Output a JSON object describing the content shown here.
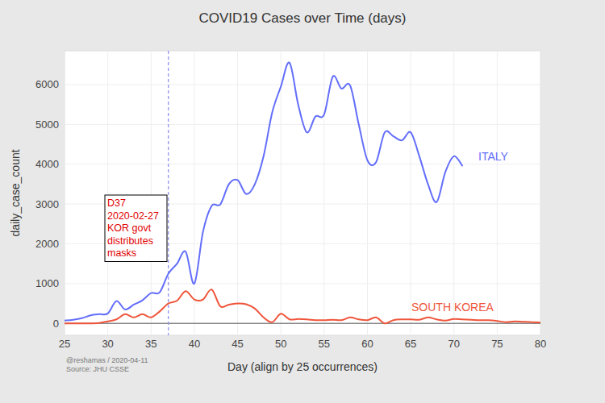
{
  "chart_data": {
    "type": "line",
    "title": "COVID19 Cases over Time (days)",
    "x_label": "Day (align by 25 occurrences)",
    "y_label": "daily_case_count",
    "x": [
      25,
      26,
      27,
      28,
      29,
      30,
      31,
      32,
      33,
      34,
      35,
      36,
      37,
      38,
      39,
      40,
      41,
      42,
      43,
      44,
      45,
      46,
      47,
      48,
      49,
      50,
      51,
      52,
      53,
      54,
      55,
      56,
      57,
      58,
      59,
      60,
      61,
      62,
      63,
      64,
      65,
      66,
      67,
      68,
      69,
      70,
      71,
      72,
      73,
      74,
      75,
      76,
      77,
      78,
      79,
      80
    ],
    "series": [
      {
        "name": "ITALY",
        "color": "#636efa",
        "values": [
          70,
          90,
          130,
          200,
          230,
          250,
          560,
          350,
          470,
          580,
          760,
          780,
          1250,
          1500,
          1800,
          1000,
          2300,
          2950,
          2990,
          3500,
          3600,
          3250,
          3500,
          4200,
          5300,
          5950,
          6550,
          5500,
          4800,
          5200,
          5250,
          6200,
          5900,
          5980,
          5000,
          4100,
          4050,
          4800,
          4700,
          4600,
          4800,
          4200,
          3500,
          3050,
          3800,
          4200,
          3950,
          null,
          null,
          null,
          null,
          null,
          null,
          null,
          null,
          null
        ]
      },
      {
        "name": "SOUTH KOREA",
        "color": "#ef553b",
        "values": [
          0,
          0,
          0,
          0,
          10,
          50,
          100,
          230,
          150,
          230,
          150,
          300,
          500,
          570,
          810,
          600,
          600,
          850,
          430,
          470,
          500,
          480,
          370,
          150,
          30,
          240,
          100,
          110,
          100,
          80,
          80,
          90,
          80,
          150,
          100,
          80,
          150,
          0,
          80,
          100,
          100,
          90,
          150,
          100,
          70,
          110,
          100,
          90,
          80,
          80,
          60,
          30,
          50,
          40,
          30,
          25
        ]
      }
    ],
    "xlim": [
      25,
      80
    ],
    "ylim": [
      -300,
      6850
    ],
    "xticks": [
      25,
      30,
      35,
      40,
      45,
      50,
      55,
      60,
      65,
      70,
      75,
      80
    ],
    "yticks": [
      0,
      1000,
      2000,
      3000,
      4000,
      5000,
      6000
    ],
    "grid": true,
    "annotations": [
      {
        "x": 37,
        "lines": [
          "D37",
          "2020-02-27",
          "KOR govt",
          "distributes",
          "masks"
        ]
      }
    ],
    "notes": [
      "@reshamas / 2020-04-11",
      "Source: JHU CSSE"
    ]
  }
}
